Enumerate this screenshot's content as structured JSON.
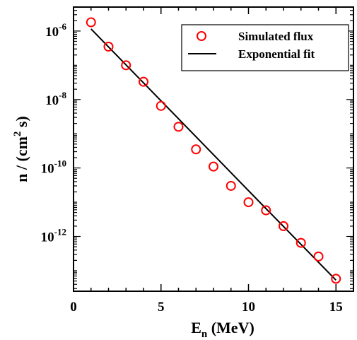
{
  "chart_data": {
    "type": "scatter",
    "title": "",
    "xlabel": {
      "main": "E",
      "sub": "n",
      "rest": " (MeV)"
    },
    "ylabel": {
      "main": "n / (cm",
      "sup": "2",
      "rest": " s)"
    },
    "x_range": [
      0,
      16
    ],
    "y_range_log10": [
      -13.6,
      -5.3
    ],
    "y_scale": "log",
    "grid": false,
    "legend_position": "top-right",
    "x_ticks": [
      0,
      5,
      10,
      15
    ],
    "x_tick_labels": [
      "0",
      "5",
      "10",
      "15"
    ],
    "y_tick_exponents": [
      -6,
      -8,
      -10,
      -12
    ],
    "y_tick_labels": [
      {
        "base": "10",
        "exp": "-6"
      },
      {
        "base": "10",
        "exp": "-8"
      },
      {
        "base": "10",
        "exp": "-10"
      },
      {
        "base": "10",
        "exp": "-12"
      }
    ],
    "series": [
      {
        "name": "Simulated flux",
        "kind": "markers",
        "color": "#ff0000",
        "x": [
          1,
          2,
          3,
          4,
          5,
          6,
          7,
          8,
          9,
          10,
          11,
          12,
          13,
          14,
          15
        ],
        "y": [
          1.8e-06,
          3.5e-07,
          1e-07,
          3.3e-08,
          6.5e-09,
          1.6e-09,
          3.5e-10,
          1.1e-10,
          3e-11,
          1e-11,
          5.8e-12,
          2e-12,
          6.5e-13,
          2.6e-13,
          5.8e-14
        ]
      },
      {
        "name": "Exponential fit",
        "kind": "line",
        "color": "#000000",
        "x": [
          1,
          11,
          15
        ],
        "y": [
          1.15e-06,
          6.5e-12,
          5.3e-14
        ]
      }
    ]
  }
}
